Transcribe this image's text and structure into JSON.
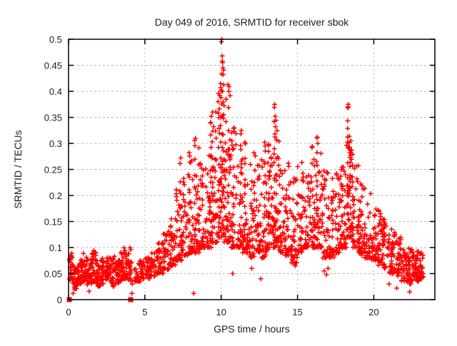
{
  "chart_data": {
    "type": "scatter",
    "title": "Day 049 of 2016, SRMTID for receiver sbok",
    "xlabel": "GPS time / hours",
    "ylabel": "SRMTID / TECUs",
    "xlim": [
      0,
      24
    ],
    "ylim": [
      0,
      0.5
    ],
    "xtick_values": [
      0,
      5,
      10,
      15,
      20
    ],
    "xtick_labels": [
      "0",
      "5",
      "10",
      "15",
      "20"
    ],
    "ytick_values": [
      0,
      0.05,
      0.1,
      0.15,
      0.2,
      0.25,
      0.3,
      0.35,
      0.4,
      0.45,
      0.5
    ],
    "ytick_labels": [
      "0",
      "0.05",
      "0.1",
      "0.15",
      "0.2",
      "0.25",
      "0.3",
      "0.35",
      "0.4",
      "0.45",
      "0.5"
    ],
    "grid": {
      "on": true,
      "color": "#b9b9b9",
      "style": "dashed"
    },
    "legend": "none",
    "marker": {
      "shape": "plus",
      "color": "#ff0000",
      "size": 7
    },
    "zero_marker": {
      "shape": "filled-square",
      "color": "#ff0000",
      "size": 7
    },
    "zero_markers": [
      [
        0.05,
        0
      ],
      [
        4.07,
        0
      ]
    ],
    "seed": 49,
    "bins": [
      [
        0.05,
        0.3,
        30,
        0.035,
        0.092,
        1.4
      ],
      [
        0.3,
        0.6,
        26,
        0.02,
        0.062,
        1.4
      ],
      [
        0.6,
        0.9,
        26,
        0.03,
        0.078,
        1.4
      ],
      [
        0.9,
        1.2,
        28,
        0.035,
        0.09,
        1.5
      ],
      [
        1.2,
        1.5,
        26,
        0.028,
        0.08,
        1.5
      ],
      [
        1.5,
        1.8,
        28,
        0.035,
        0.095,
        1.5
      ],
      [
        1.8,
        2.1,
        26,
        0.025,
        0.075,
        1.4
      ],
      [
        2.1,
        2.4,
        26,
        0.03,
        0.08,
        1.4
      ],
      [
        2.4,
        2.7,
        27,
        0.035,
        0.09,
        1.5
      ],
      [
        2.7,
        3.0,
        26,
        0.025,
        0.08,
        1.4
      ],
      [
        3.0,
        3.3,
        26,
        0.03,
        0.085,
        1.5
      ],
      [
        3.3,
        3.6,
        27,
        0.035,
        0.092,
        1.5
      ],
      [
        3.6,
        3.9,
        29,
        0.04,
        0.1,
        1.5
      ],
      [
        3.9,
        4.15,
        24,
        0.035,
        0.105,
        1.5
      ],
      [
        4.3,
        4.6,
        18,
        0.035,
        0.07,
        1.4
      ],
      [
        4.6,
        5.0,
        27,
        0.035,
        0.075,
        1.4
      ],
      [
        5.0,
        5.4,
        27,
        0.04,
        0.082,
        1.4
      ],
      [
        5.4,
        5.8,
        27,
        0.045,
        0.092,
        1.5
      ],
      [
        5.8,
        6.2,
        28,
        0.05,
        0.11,
        1.6
      ],
      [
        6.2,
        6.6,
        29,
        0.058,
        0.132,
        1.7
      ],
      [
        6.6,
        7.0,
        30,
        0.065,
        0.16,
        1.8
      ],
      [
        7.0,
        7.4,
        32,
        0.075,
        0.215,
        2
      ],
      [
        7.4,
        7.8,
        33,
        0.085,
        0.24,
        2.1
      ],
      [
        7.8,
        8.2,
        34,
        0.09,
        0.275,
        2.2
      ],
      [
        8.2,
        8.6,
        35,
        0.09,
        0.3,
        2.3
      ],
      [
        8.6,
        9.0,
        35,
        0.1,
        0.27,
        2.2
      ],
      [
        9.0,
        9.4,
        36,
        0.1,
        0.33,
        2.4
      ],
      [
        9.4,
        9.8,
        36,
        0.11,
        0.365,
        2.5
      ],
      [
        9.8,
        10.2,
        38,
        0.12,
        0.43,
        2.5
      ],
      [
        10.2,
        10.6,
        36,
        0.11,
        0.395,
        2.6
      ],
      [
        10.6,
        11.0,
        34,
        0.1,
        0.33,
        2.4
      ],
      [
        11.0,
        11.4,
        34,
        0.1,
        0.31,
        2.4
      ],
      [
        11.4,
        11.8,
        33,
        0.09,
        0.285,
        2.3
      ],
      [
        11.8,
        12.2,
        33,
        0.08,
        0.27,
        2.3
      ],
      [
        12.2,
        12.6,
        33,
        0.09,
        0.28,
        2.3
      ],
      [
        12.6,
        13.0,
        33,
        0.08,
        0.3,
        2.3
      ],
      [
        13.0,
        13.4,
        34,
        0.1,
        0.3,
        2.3
      ],
      [
        13.4,
        13.8,
        34,
        0.1,
        0.34,
        2.4
      ],
      [
        13.8,
        14.2,
        33,
        0.09,
        0.26,
        2.2
      ],
      [
        14.2,
        14.6,
        33,
        0.085,
        0.25,
        2.2
      ],
      [
        14.6,
        15.0,
        33,
        0.07,
        0.24,
        2.2
      ],
      [
        15.0,
        15.4,
        33,
        0.09,
        0.26,
        2.2
      ],
      [
        15.4,
        15.8,
        33,
        0.1,
        0.27,
        2.2
      ],
      [
        15.8,
        16.2,
        34,
        0.1,
        0.29,
        2.3
      ],
      [
        16.2,
        16.6,
        34,
        0.1,
        0.31,
        2.3
      ],
      [
        16.6,
        17.0,
        33,
        0.08,
        0.25,
        2.2
      ],
      [
        17.0,
        17.4,
        33,
        0.08,
        0.23,
        2.1
      ],
      [
        17.4,
        17.8,
        33,
        0.09,
        0.24,
        2.1
      ],
      [
        17.8,
        18.2,
        34,
        0.1,
        0.275,
        2.2
      ],
      [
        18.2,
        18.6,
        36,
        0.12,
        0.335,
        2
      ],
      [
        18.6,
        19.0,
        35,
        0.1,
        0.28,
        2.2
      ],
      [
        19.0,
        19.4,
        33,
        0.09,
        0.22,
        2
      ],
      [
        19.4,
        19.8,
        33,
        0.08,
        0.21,
        2
      ],
      [
        19.8,
        20.2,
        32,
        0.075,
        0.18,
        1.9
      ],
      [
        20.2,
        20.6,
        32,
        0.07,
        0.17,
        1.9
      ],
      [
        20.6,
        21.0,
        32,
        0.06,
        0.158,
        1.8
      ],
      [
        21.0,
        21.4,
        32,
        0.05,
        0.132,
        1.7
      ],
      [
        21.4,
        21.8,
        32,
        0.045,
        0.12,
        1.6
      ],
      [
        21.8,
        22.2,
        34,
        0.035,
        0.105,
        1.5
      ],
      [
        22.2,
        22.6,
        40,
        0.03,
        0.1,
        1.5
      ],
      [
        22.6,
        23.0,
        40,
        0.035,
        0.095,
        1.5
      ],
      [
        23.0,
        23.25,
        20,
        0.04,
        0.09,
        1.4
      ]
    ],
    "columns": [
      [
        5.9,
        0.05,
        0.105,
        5
      ],
      [
        6.3,
        0.06,
        0.125,
        5
      ],
      [
        6.7,
        0.07,
        0.155,
        6
      ],
      [
        7.3,
        0.08,
        0.26,
        7
      ],
      [
        7.9,
        0.09,
        0.27,
        7
      ],
      [
        8.3,
        0.09,
        0.3,
        8
      ],
      [
        8.6,
        0.1,
        0.26,
        6
      ],
      [
        9.3,
        0.12,
        0.345,
        10
      ],
      [
        9.45,
        0.14,
        0.355,
        9
      ],
      [
        9.85,
        0.15,
        0.4,
        10
      ],
      [
        9.95,
        0.14,
        0.41,
        11
      ],
      [
        10.05,
        0.15,
        0.49,
        13
      ],
      [
        10.15,
        0.12,
        0.44,
        11
      ],
      [
        10.3,
        0.12,
        0.38,
        8
      ],
      [
        10.5,
        0.12,
        0.41,
        8
      ],
      [
        10.85,
        0.1,
        0.33,
        7
      ],
      [
        11.3,
        0.1,
        0.32,
        8
      ],
      [
        11.55,
        0.1,
        0.3,
        7
      ],
      [
        12.2,
        0.1,
        0.28,
        7
      ],
      [
        12.85,
        0.1,
        0.3,
        7
      ],
      [
        13.1,
        0.1,
        0.295,
        7
      ],
      [
        13.5,
        0.12,
        0.37,
        10
      ],
      [
        13.6,
        0.11,
        0.34,
        8
      ],
      [
        14.4,
        0.09,
        0.26,
        6
      ],
      [
        14.85,
        0.065,
        0.15,
        6
      ],
      [
        15.3,
        0.1,
        0.26,
        6
      ],
      [
        15.95,
        0.1,
        0.29,
        7
      ],
      [
        16.3,
        0.11,
        0.31,
        8
      ],
      [
        17.3,
        0.09,
        0.23,
        6
      ],
      [
        17.9,
        0.1,
        0.25,
        6
      ],
      [
        18.3,
        0.13,
        0.37,
        10
      ],
      [
        18.42,
        0.2,
        0.31,
        12
      ],
      [
        18.6,
        0.12,
        0.28,
        8
      ],
      [
        19.2,
        0.09,
        0.22,
        6
      ],
      [
        20.3,
        0.07,
        0.17,
        5
      ],
      [
        21.2,
        0.055,
        0.13,
        5
      ]
    ],
    "outliers_high": [
      [
        10.04,
        0.5
      ],
      [
        10.07,
        0.468
      ],
      [
        10.09,
        0.455
      ],
      [
        10.11,
        0.445
      ],
      [
        10.13,
        0.432
      ],
      [
        9.96,
        0.415
      ],
      [
        10.0,
        0.402
      ],
      [
        9.9,
        0.392
      ],
      [
        10.45,
        0.413
      ],
      [
        10.5,
        0.4
      ],
      [
        10.32,
        0.385
      ],
      [
        13.5,
        0.375
      ],
      [
        13.54,
        0.352
      ],
      [
        13.47,
        0.342
      ],
      [
        13.56,
        0.332
      ],
      [
        13.52,
        0.318
      ],
      [
        18.33,
        0.375
      ],
      [
        18.3,
        0.368
      ],
      [
        11.32,
        0.325
      ],
      [
        10.85,
        0.33
      ],
      [
        9.35,
        0.352
      ],
      [
        9.3,
        0.34
      ],
      [
        9.5,
        0.332
      ],
      [
        8.32,
        0.31
      ],
      [
        12.85,
        0.302
      ],
      [
        16.3,
        0.312
      ],
      [
        16.33,
        0.3
      ],
      [
        13.1,
        0.298
      ],
      [
        15.95,
        0.292
      ],
      [
        18.5,
        0.305
      ],
      [
        7.35,
        0.272
      ],
      [
        7.9,
        0.282
      ],
      [
        12.15,
        0.282
      ],
      [
        14.4,
        0.262
      ],
      [
        17.55,
        0.242
      ],
      [
        19.15,
        0.222
      ],
      [
        11.55,
        0.302
      ],
      [
        10.7,
        0.305
      ]
    ],
    "outliers_low": [
      [
        0.3,
        0.012
      ],
      [
        1.35,
        0.016
      ],
      [
        4.15,
        0.012
      ],
      [
        4.18,
        0.03
      ],
      [
        8.2,
        0.012
      ],
      [
        12.0,
        0.06
      ],
      [
        12.6,
        0.04
      ],
      [
        14.85,
        0.065
      ],
      [
        16.75,
        0.055
      ],
      [
        16.9,
        0.048
      ],
      [
        17.0,
        0.06
      ],
      [
        21.0,
        0.03
      ],
      [
        21.5,
        0.022
      ],
      [
        22.35,
        0.015
      ],
      [
        10.75,
        0.05
      ]
    ],
    "colors": {
      "points": "#ff0000",
      "border": "#000000",
      "grid": "#b9b9b9",
      "text": "#1c1c1c",
      "background": "#ffffff"
    }
  }
}
